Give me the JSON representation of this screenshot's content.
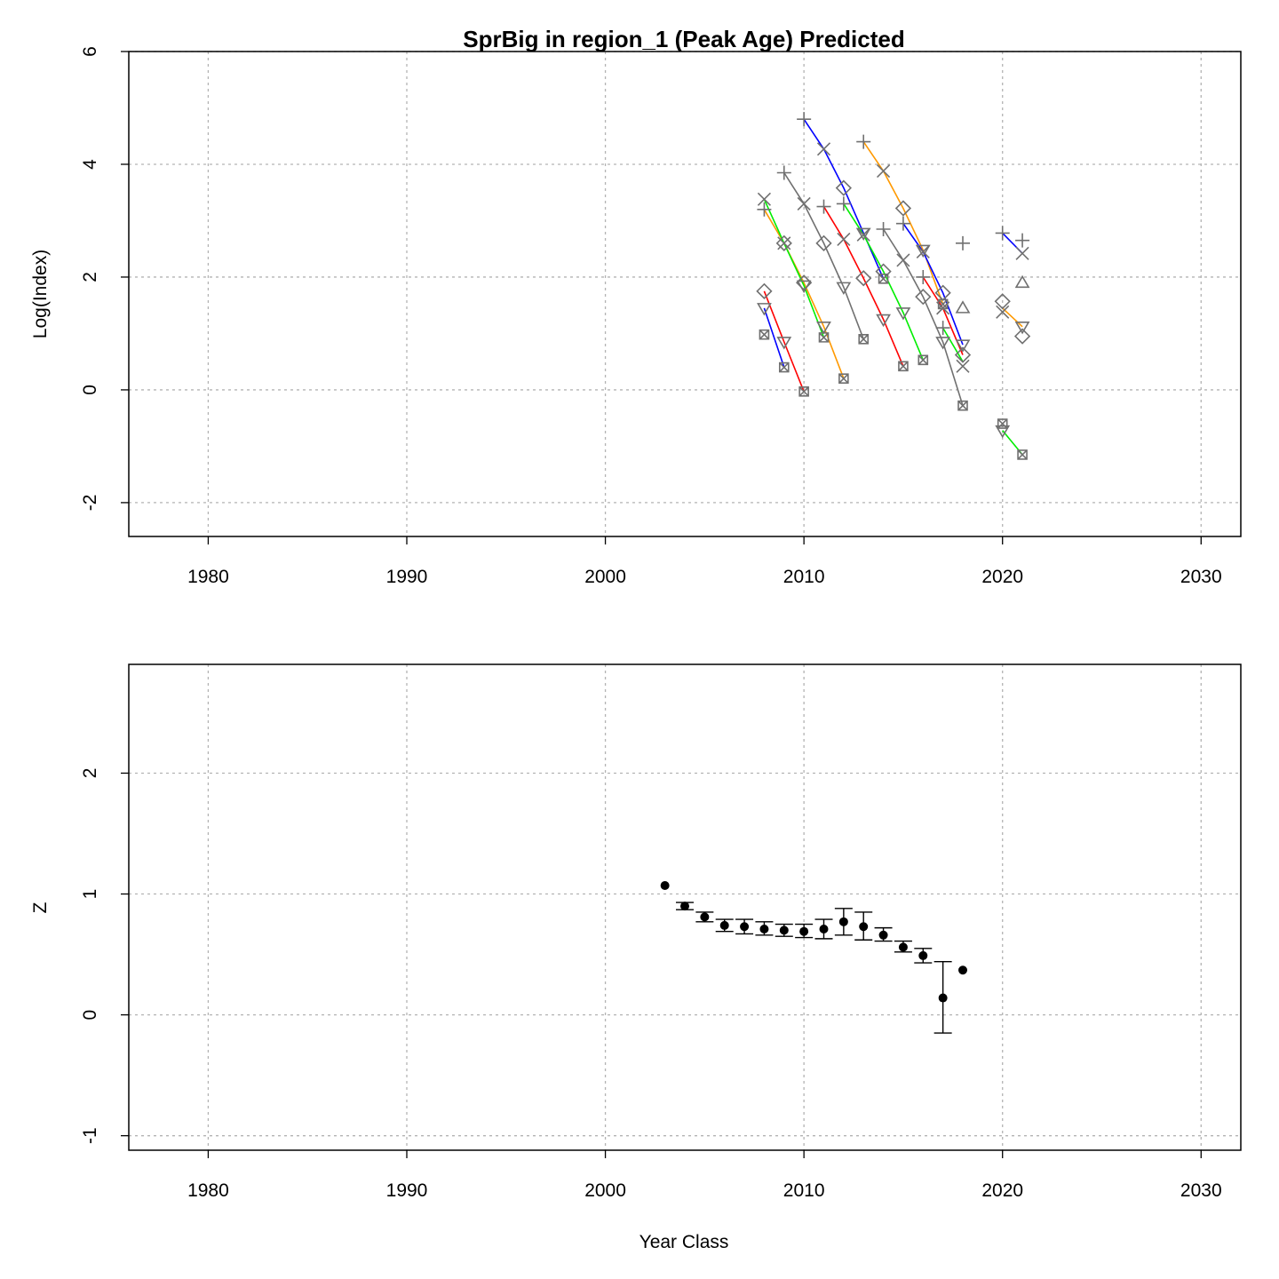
{
  "chart_data": [
    {
      "type": "line",
      "title": "SprBig in region_1 (Peak Age) Predicted",
      "xlabel": "",
      "ylabel": "Log(Index)",
      "xlim": [
        1976,
        2032
      ],
      "ylim": [
        -2.6,
        6.0
      ],
      "x_ticks": [
        "1980",
        "1990",
        "2000",
        "2010",
        "2020",
        "2030"
      ],
      "y_ticks": [
        "-2",
        "0",
        "2",
        "4",
        "6"
      ],
      "grid": true,
      "series_colors": [
        "#0000ff",
        "#ff9900",
        "#ff0000",
        "#00ee00"
      ],
      "marker_color": "#707070",
      "cohort_lines": [
        {
          "color": "#0000ff",
          "points": [
            [
              2008,
              1.45
            ],
            [
              2009,
              0.4
            ]
          ]
        },
        {
          "color": "#ff9900",
          "points": [
            [
              2008,
              3.2
            ],
            [
              2009,
              2.6
            ],
            [
              2010,
              1.9
            ],
            [
              2011,
              1.12
            ],
            [
              2012,
              0.2
            ]
          ]
        },
        {
          "color": "#ff0000",
          "points": [
            [
              2008,
              1.75
            ],
            [
              2009,
              0.85
            ],
            [
              2010,
              -0.03
            ]
          ]
        },
        {
          "color": "#00ee00",
          "points": [
            [
              2008,
              3.38
            ],
            [
              2009,
              2.6
            ],
            [
              2010,
              1.85
            ],
            [
              2011,
              0.93
            ]
          ]
        },
        {
          "color": "#707070",
          "points": [
            [
              2009,
              3.85
            ],
            [
              2010,
              3.3
            ],
            [
              2011,
              2.6
            ],
            [
              2012,
              1.82
            ],
            [
              2013,
              0.9
            ]
          ]
        },
        {
          "color": "#0000ff",
          "points": [
            [
              2010,
              4.8
            ],
            [
              2011,
              4.27
            ],
            [
              2012,
              3.58
            ],
            [
              2013,
              2.78
            ],
            [
              2014,
              1.97
            ]
          ]
        },
        {
          "color": "#ff0000",
          "points": [
            [
              2011,
              3.25
            ],
            [
              2012,
              2.67
            ],
            [
              2013,
              1.98
            ],
            [
              2014,
              1.25
            ],
            [
              2015,
              0.42
            ]
          ]
        },
        {
          "color": "#00ee00",
          "points": [
            [
              2012,
              3.3
            ],
            [
              2013,
              2.75
            ],
            [
              2014,
              2.1
            ],
            [
              2015,
              1.37
            ],
            [
              2016,
              0.53
            ]
          ]
        },
        {
          "color": "#ff9900",
          "points": [
            [
              2013,
              4.4
            ],
            [
              2014,
              3.88
            ],
            [
              2015,
              3.22
            ],
            [
              2016,
              2.48
            ],
            [
              2017,
              1.52
            ]
          ]
        },
        {
          "color": "#707070",
          "points": [
            [
              2014,
              2.85
            ],
            [
              2015,
              2.3
            ],
            [
              2016,
              1.65
            ],
            [
              2017,
              0.85
            ],
            [
              2018,
              -0.28
            ]
          ]
        },
        {
          "color": "#0000ff",
          "points": [
            [
              2015,
              2.95
            ],
            [
              2016,
              2.45
            ],
            [
              2017,
              1.72
            ],
            [
              2018,
              0.8
            ]
          ]
        },
        {
          "color": "#ff0000",
          "points": [
            [
              2016,
              2.0
            ],
            [
              2017,
              1.45
            ],
            [
              2018,
              0.62
            ]
          ]
        },
        {
          "color": "#00ee00",
          "points": [
            [
              2017,
              1.1
            ],
            [
              2018,
              0.5
            ]
          ]
        },
        {
          "color": "#ff9900",
          "points": [
            [
              2020,
              1.45
            ],
            [
              2021,
              1.12
            ]
          ]
        },
        {
          "color": "#00ee00",
          "points": [
            [
              2020,
              -0.72
            ],
            [
              2021,
              -1.15
            ]
          ]
        },
        {
          "color": "#0000ff",
          "points": [
            [
              2020,
              2.78
            ],
            [
              2021,
              2.42
            ]
          ]
        }
      ],
      "markers": [
        {
          "shape": "plus",
          "x": 2008,
          "y": 3.2
        },
        {
          "shape": "cross",
          "x": 2008,
          "y": 3.38
        },
        {
          "shape": "diamond",
          "x": 2008,
          "y": 1.75
        },
        {
          "shape": "tri-down",
          "x": 2008,
          "y": 1.45
        },
        {
          "shape": "box-x",
          "x": 2008,
          "y": 0.98
        },
        {
          "shape": "plus",
          "x": 2009,
          "y": 3.85
        },
        {
          "shape": "cross",
          "x": 2009,
          "y": 2.6
        },
        {
          "shape": "diamond",
          "x": 2009,
          "y": 2.6
        },
        {
          "shape": "tri-down",
          "x": 2009,
          "y": 0.85
        },
        {
          "shape": "box-x",
          "x": 2009,
          "y": 0.4
        },
        {
          "shape": "plus",
          "x": 2010,
          "y": 4.8
        },
        {
          "shape": "cross",
          "x": 2010,
          "y": 3.3
        },
        {
          "shape": "diamond",
          "x": 2010,
          "y": 1.9
        },
        {
          "shape": "tri-down",
          "x": 2010,
          "y": 1.85
        },
        {
          "shape": "box-x",
          "x": 2010,
          "y": -0.03
        },
        {
          "shape": "plus",
          "x": 2011,
          "y": 3.25
        },
        {
          "shape": "cross",
          "x": 2011,
          "y": 4.27
        },
        {
          "shape": "diamond",
          "x": 2011,
          "y": 2.6
        },
        {
          "shape": "tri-down",
          "x": 2011,
          "y": 1.12
        },
        {
          "shape": "box-x",
          "x": 2011,
          "y": 0.93
        },
        {
          "shape": "plus",
          "x": 2012,
          "y": 3.3
        },
        {
          "shape": "cross",
          "x": 2012,
          "y": 2.67
        },
        {
          "shape": "diamond",
          "x": 2012,
          "y": 3.58
        },
        {
          "shape": "tri-down",
          "x": 2012,
          "y": 1.82
        },
        {
          "shape": "box-x",
          "x": 2012,
          "y": 0.2
        },
        {
          "shape": "plus",
          "x": 2013,
          "y": 4.4
        },
        {
          "shape": "cross",
          "x": 2013,
          "y": 2.75
        },
        {
          "shape": "diamond",
          "x": 2013,
          "y": 1.98
        },
        {
          "shape": "tri-down",
          "x": 2013,
          "y": 2.78
        },
        {
          "shape": "box-x",
          "x": 2013,
          "y": 0.9
        },
        {
          "shape": "plus",
          "x": 2014,
          "y": 2.85
        },
        {
          "shape": "cross",
          "x": 2014,
          "y": 3.88
        },
        {
          "shape": "diamond",
          "x": 2014,
          "y": 2.1
        },
        {
          "shape": "tri-down",
          "x": 2014,
          "y": 1.25
        },
        {
          "shape": "box-x",
          "x": 2014,
          "y": 1.97
        },
        {
          "shape": "plus",
          "x": 2015,
          "y": 2.95
        },
        {
          "shape": "cross",
          "x": 2015,
          "y": 2.3
        },
        {
          "shape": "diamond",
          "x": 2015,
          "y": 3.22
        },
        {
          "shape": "tri-down",
          "x": 2015,
          "y": 1.37
        },
        {
          "shape": "box-x",
          "x": 2015,
          "y": 0.42
        },
        {
          "shape": "plus",
          "x": 2016,
          "y": 2.0
        },
        {
          "shape": "cross",
          "x": 2016,
          "y": 2.45
        },
        {
          "shape": "diamond",
          "x": 2016,
          "y": 1.65
        },
        {
          "shape": "tri-down",
          "x": 2016,
          "y": 2.48
        },
        {
          "shape": "box-x",
          "x": 2016,
          "y": 0.53
        },
        {
          "shape": "plus",
          "x": 2017,
          "y": 1.1
        },
        {
          "shape": "cross",
          "x": 2017,
          "y": 1.45
        },
        {
          "shape": "diamond",
          "x": 2017,
          "y": 1.72
        },
        {
          "shape": "tri-down",
          "x": 2017,
          "y": 0.85
        },
        {
          "shape": "box-x",
          "x": 2017,
          "y": 1.52
        },
        {
          "shape": "plus",
          "x": 2018,
          "y": 2.6
        },
        {
          "shape": "cross",
          "x": 2018,
          "y": 0.42
        },
        {
          "shape": "diamond",
          "x": 2018,
          "y": 0.62
        },
        {
          "shape": "tri-down",
          "x": 2018,
          "y": 0.8
        },
        {
          "shape": "triangle-up",
          "x": 2018,
          "y": 1.45
        },
        {
          "shape": "box-x",
          "x": 2018,
          "y": -0.28
        },
        {
          "shape": "plus",
          "x": 2020,
          "y": 2.78
        },
        {
          "shape": "cross",
          "x": 2020,
          "y": 1.38
        },
        {
          "shape": "diamond",
          "x": 2020,
          "y": 1.57
        },
        {
          "shape": "tri-down",
          "x": 2020,
          "y": -0.72
        },
        {
          "shape": "box-x",
          "x": 2020,
          "y": -0.6
        },
        {
          "shape": "plus",
          "x": 2021,
          "y": 2.65
        },
        {
          "shape": "cross",
          "x": 2021,
          "y": 2.42
        },
        {
          "shape": "diamond",
          "x": 2021,
          "y": 0.95
        },
        {
          "shape": "tri-down",
          "x": 2021,
          "y": 1.12
        },
        {
          "shape": "triangle-up",
          "x": 2021,
          "y": 1.9
        },
        {
          "shape": "box-x",
          "x": 2021,
          "y": -1.15
        }
      ]
    },
    {
      "type": "scatter",
      "title": "",
      "xlabel": "Year Class",
      "ylabel": "Z",
      "xlim": [
        1976,
        2032
      ],
      "ylim": [
        -1.12,
        2.9
      ],
      "x_ticks": [
        "1980",
        "1990",
        "2000",
        "2010",
        "2020",
        "2030"
      ],
      "y_ticks": [
        "-1",
        "0",
        "1",
        "2"
      ],
      "grid": true,
      "points": [
        {
          "x": 2003,
          "y": 1.07,
          "lo": null,
          "hi": null
        },
        {
          "x": 2004,
          "y": 0.9,
          "lo": 0.87,
          "hi": 0.93
        },
        {
          "x": 2005,
          "y": 0.81,
          "lo": 0.77,
          "hi": 0.85
        },
        {
          "x": 2006,
          "y": 0.74,
          "lo": 0.69,
          "hi": 0.79
        },
        {
          "x": 2007,
          "y": 0.73,
          "lo": 0.67,
          "hi": 0.79
        },
        {
          "x": 2008,
          "y": 0.71,
          "lo": 0.66,
          "hi": 0.77
        },
        {
          "x": 2009,
          "y": 0.7,
          "lo": 0.65,
          "hi": 0.75
        },
        {
          "x": 2010,
          "y": 0.69,
          "lo": 0.64,
          "hi": 0.75
        },
        {
          "x": 2011,
          "y": 0.71,
          "lo": 0.63,
          "hi": 0.79
        },
        {
          "x": 2012,
          "y": 0.77,
          "lo": 0.66,
          "hi": 0.88
        },
        {
          "x": 2013,
          "y": 0.73,
          "lo": 0.62,
          "hi": 0.85
        },
        {
          "x": 2014,
          "y": 0.66,
          "lo": 0.61,
          "hi": 0.72
        },
        {
          "x": 2015,
          "y": 0.56,
          "lo": 0.52,
          "hi": 0.61
        },
        {
          "x": 2016,
          "y": 0.49,
          "lo": 0.43,
          "hi": 0.55
        },
        {
          "x": 2017,
          "y": 0.14,
          "lo": -0.15,
          "hi": 0.44
        },
        {
          "x": 2018,
          "y": 0.37,
          "lo": null,
          "hi": null
        }
      ]
    }
  ]
}
